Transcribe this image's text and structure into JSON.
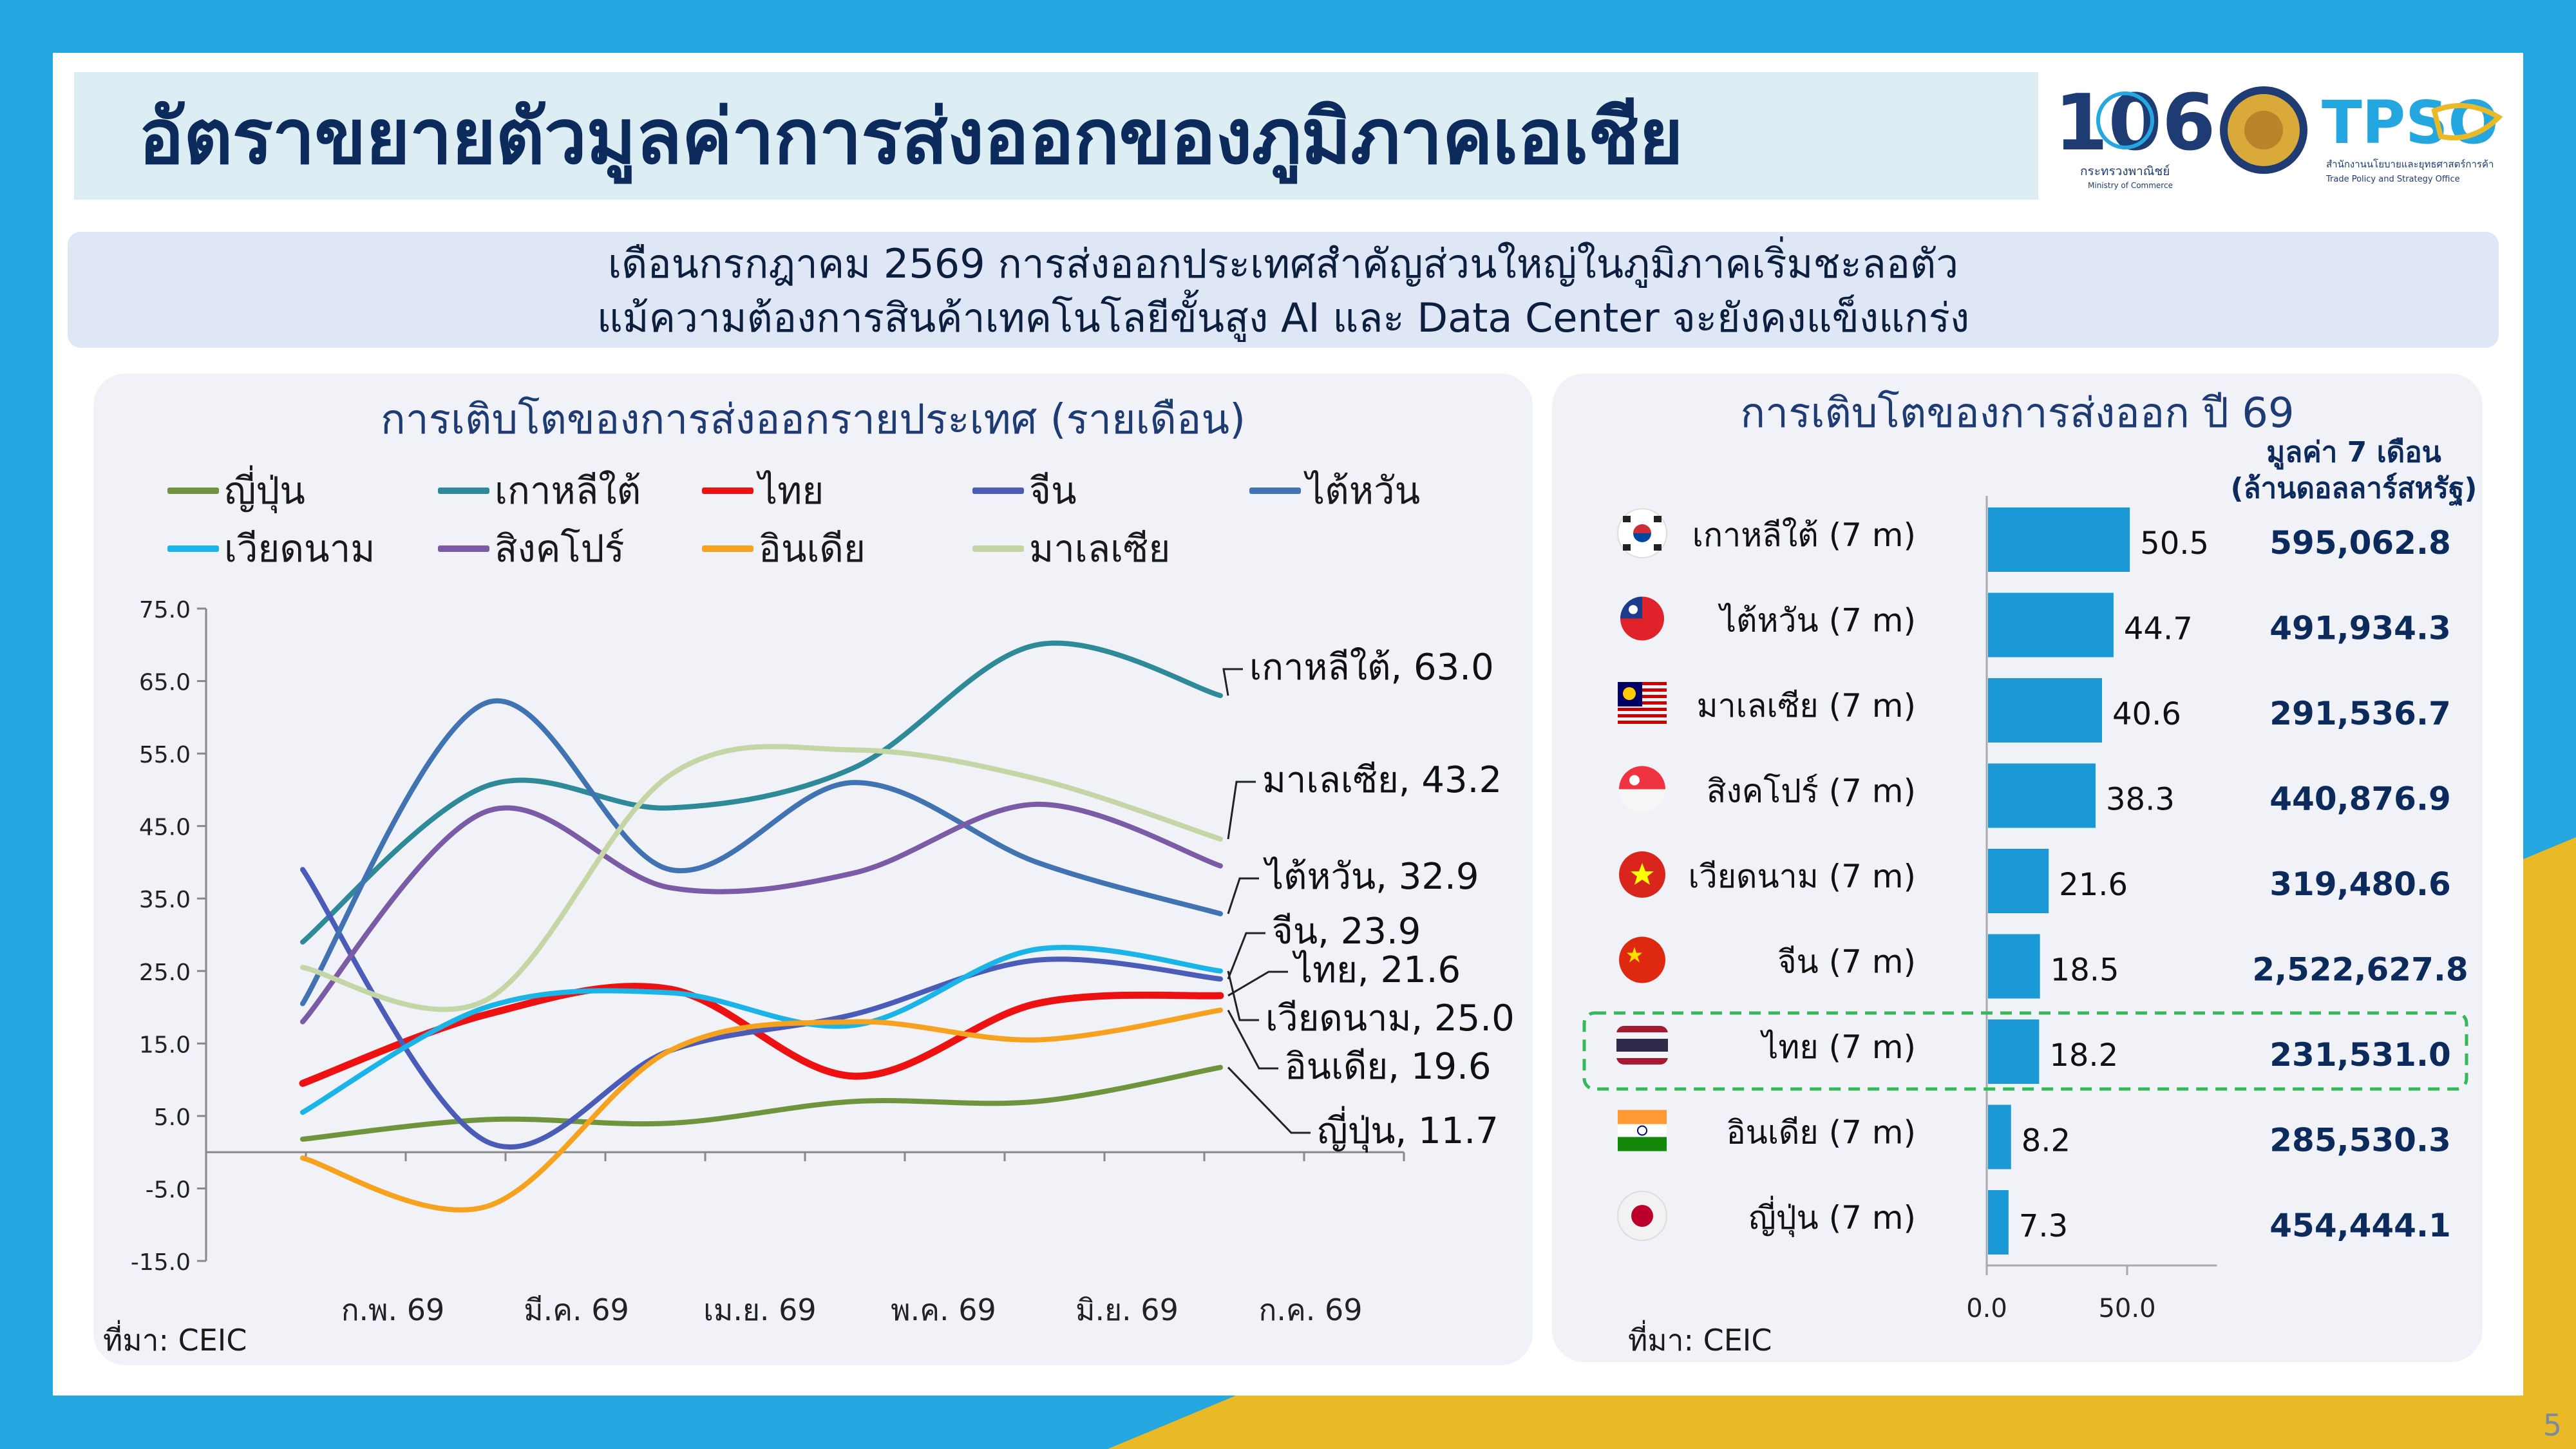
{
  "colors": {
    "frame": "#24a6e0",
    "accent_yellow": "#e9b927",
    "title_bg": "#dcedf4",
    "navy": "#0c2a5c"
  },
  "header": {
    "title": "อัตราขยายตัวมูลค่าการส่งออกของภูมิภาคเอเชีย",
    "logo_ministry_th": "กระทรวงพาณิชย์",
    "logo_ministry_en": "Ministry of Commerce",
    "logo_tpso": "TPSO",
    "logo_tpso_th": "สำนักงานนโยบายและยุทธศาสตร์การค้า",
    "logo_tpso_en": "Trade Policy and Strategy Office",
    "logo_106": "106"
  },
  "subtitle": {
    "line1": "เดือนกรกฎาคม 2569 การส่งออกประเทศสำคัญส่วนใหญ่ในภูมิภาคเริ่มชะลอตัว",
    "line2": "แม้ความต้องการสินค้าเทคโนโลยีขั้นสูง AI และ Data Center จะยังคงแข็งแกร่ง"
  },
  "left_panel": {
    "title": "การเติบโตของการส่งออกรายประเทศ (รายเดือน)",
    "source": "ที่มา: CEIC"
  },
  "right_panel": {
    "title": "การเติบโตของการส่งออก ปี 69",
    "value_header_1": "มูลค่า 7 เดือน",
    "value_header_2": "(ล้านดอลลาร์สหรัฐ)",
    "source": "ที่มา: CEIC"
  },
  "page_number": "5",
  "chart_data": [
    {
      "type": "line",
      "title": "การเติบโตของการส่งออกรายประเทศ (รายเดือน)",
      "categories": [
        "ก.พ. 69",
        "มี.ค. 69",
        "เม.ย. 69",
        "พ.ค. 69",
        "มิ.ย. 69",
        "ก.ค. 69"
      ],
      "y_ticks": [
        "75.0",
        "65.0",
        "55.0",
        "45.0",
        "35.0",
        "25.0",
        "15.0",
        "5.0",
        "-5.0",
        "-15.0"
      ],
      "ylim": [
        -15,
        75
      ],
      "grid": false,
      "legend_position": "top",
      "series": [
        {
          "name": "ญี่ปุ่น",
          "color": "#70943e",
          "values": [
            1.8,
            4.5,
            4.0,
            7.0,
            7.0,
            11.7
          ],
          "end_label": "ญี่ปุ่น, 11.7"
        },
        {
          "name": "เกาหลีใต้",
          "color": "#2e8a98",
          "values": [
            29.0,
            50.5,
            47.5,
            53.0,
            70.0,
            63.0
          ],
          "end_label": "เกาหลีใต้, 63.0"
        },
        {
          "name": "ไทย",
          "color": "#ee1111",
          "values": [
            9.5,
            19.0,
            22.5,
            10.5,
            20.5,
            21.6
          ],
          "end_label": "ไทย, 21.6"
        },
        {
          "name": "จีน",
          "color": "#4a5bb8",
          "values": [
            39.0,
            1.5,
            14.0,
            19.0,
            26.5,
            23.9
          ],
          "end_label": "จีน, 23.9"
        },
        {
          "name": "ไต้หวัน",
          "color": "#4173b2",
          "values": [
            20.5,
            62.0,
            39.0,
            51.0,
            40.0,
            32.9
          ],
          "end_label": "ไต้หวัน, 32.9"
        },
        {
          "name": "เวียดนาม",
          "color": "#1ab4e8",
          "values": [
            5.5,
            20.0,
            22.0,
            17.5,
            28.0,
            25.0
          ],
          "end_label": "เวียดนาม, 25.0"
        },
        {
          "name": "สิงคโปร์",
          "color": "#7b5aa6",
          "values": [
            18.0,
            47.0,
            36.5,
            38.5,
            48.0,
            39.5
          ],
          "end_label": ""
        },
        {
          "name": "อินเดีย",
          "color": "#f6a21e",
          "values": [
            -0.8,
            -7.5,
            14.0,
            18.0,
            15.5,
            19.6
          ],
          "end_label": "อินเดีย, 19.6"
        },
        {
          "name": "มาเลเซีย",
          "color": "#c5d6a6",
          "values": [
            25.5,
            21.0,
            52.0,
            55.5,
            51.5,
            43.2
          ],
          "end_label": "มาเลเซีย, 43.2"
        }
      ]
    },
    {
      "type": "bar",
      "orientation": "horizontal",
      "title": "การเติบโตของการส่งออก ปี 69",
      "x_ticks": [
        "0.0",
        "50.0"
      ],
      "xlim": [
        0,
        82
      ],
      "bar_color": "#1b98d6",
      "categories": [
        "เกาหลีใต้ (7 m)",
        "ไต้หวัน (7 m)",
        "มาเลเซีย (7 m)",
        "สิงคโปร์ (7 m)",
        "เวียดนาม (7 m)",
        "จีน (7 m)",
        "ไทย (7 m)",
        "อินเดีย (7 m)",
        "ญี่ปุ่น (7 m)"
      ],
      "values": [
        50.5,
        44.7,
        40.6,
        38.3,
        21.6,
        18.5,
        18.2,
        8.2,
        7.3
      ],
      "value_labels": [
        "50.5",
        "44.7",
        "40.6",
        "38.3",
        "21.6",
        "18.5",
        "18.2",
        "8.2",
        "7.3"
      ],
      "export_value_7m": [
        "595,062.8",
        "491,934.3",
        "291,536.7",
        "440,876.9",
        "319,480.6",
        "2,522,627.8",
        "231,531.0",
        "285,530.3",
        "454,444.1"
      ],
      "flags": [
        "korea-flag-icon",
        "taiwan-flag-icon",
        "malaysia-flag-icon",
        "singapore-flag-icon",
        "vietnam-flag-icon",
        "china-flag-icon",
        "thailand-flag-icon",
        "india-flag-icon",
        "japan-flag-icon"
      ],
      "highlight": "ไทย (7 m)"
    }
  ]
}
